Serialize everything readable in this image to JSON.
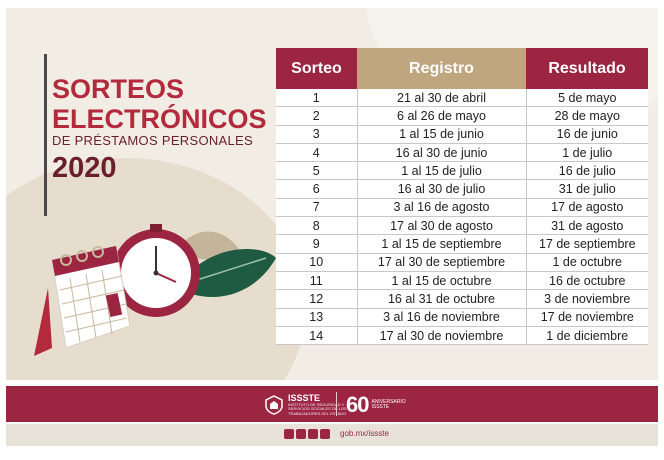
{
  "heading": {
    "line1": "SORTEOS",
    "line2": "ELECTRÓNICOS",
    "line3": "DE PRÉSTAMOS PERSONALES",
    "year": "2020"
  },
  "table": {
    "headers": [
      "Sorteo",
      "Registro",
      "Resultado"
    ],
    "rows": [
      [
        "1",
        "21 al 30 de abril",
        "5 de mayo"
      ],
      [
        "2",
        "6 al 26 de mayo",
        "28 de mayo"
      ],
      [
        "3",
        "1 al 15 de junio",
        "16 de junio"
      ],
      [
        "4",
        "16 al 30 de junio",
        "1 de julio"
      ],
      [
        "5",
        "1 al 15 de julio",
        "16 de julio"
      ],
      [
        "6",
        "16 al 30 de julio",
        "31 de julio"
      ],
      [
        "7",
        "3 al 16 de agosto",
        "17 de agosto"
      ],
      [
        "8",
        "17 al 30 de agosto",
        "31 de agosto"
      ],
      [
        "9",
        "1 al 15 de septiembre",
        "17 de septiembre"
      ],
      [
        "10",
        "17 al 30 de septiembre",
        "1 de octubre"
      ],
      [
        "11",
        "1 al 15 de octubre",
        "16 de octubre"
      ],
      [
        "12",
        "16 al 31 de octubre",
        "3 de noviembre"
      ],
      [
        "13",
        "3 al 16 de noviembre",
        "17 de noviembre"
      ],
      [
        "14",
        "17 al 30 de noviembre",
        "1 de diciembre"
      ]
    ]
  },
  "footer": {
    "logo_text": "ISSSTE",
    "logo_subtext": "INSTITUTO DE SEGURIDAD Y SERVICIOS SOCIALES DE LOS TRABAJADORES DEL ESTADO",
    "anniversary_number": "60",
    "anniversary_text": "ANIVERSARIO ISSSTE",
    "url": "gob.mx/issste",
    "social_icons": [
      "facebook-icon",
      "twitter-icon",
      "instagram-icon",
      "youtube-icon"
    ]
  },
  "colors": {
    "primary": "#9c2542",
    "gold": "#bfa67e",
    "background": "#f1ece4",
    "green_leaf": "#1f5b43"
  }
}
